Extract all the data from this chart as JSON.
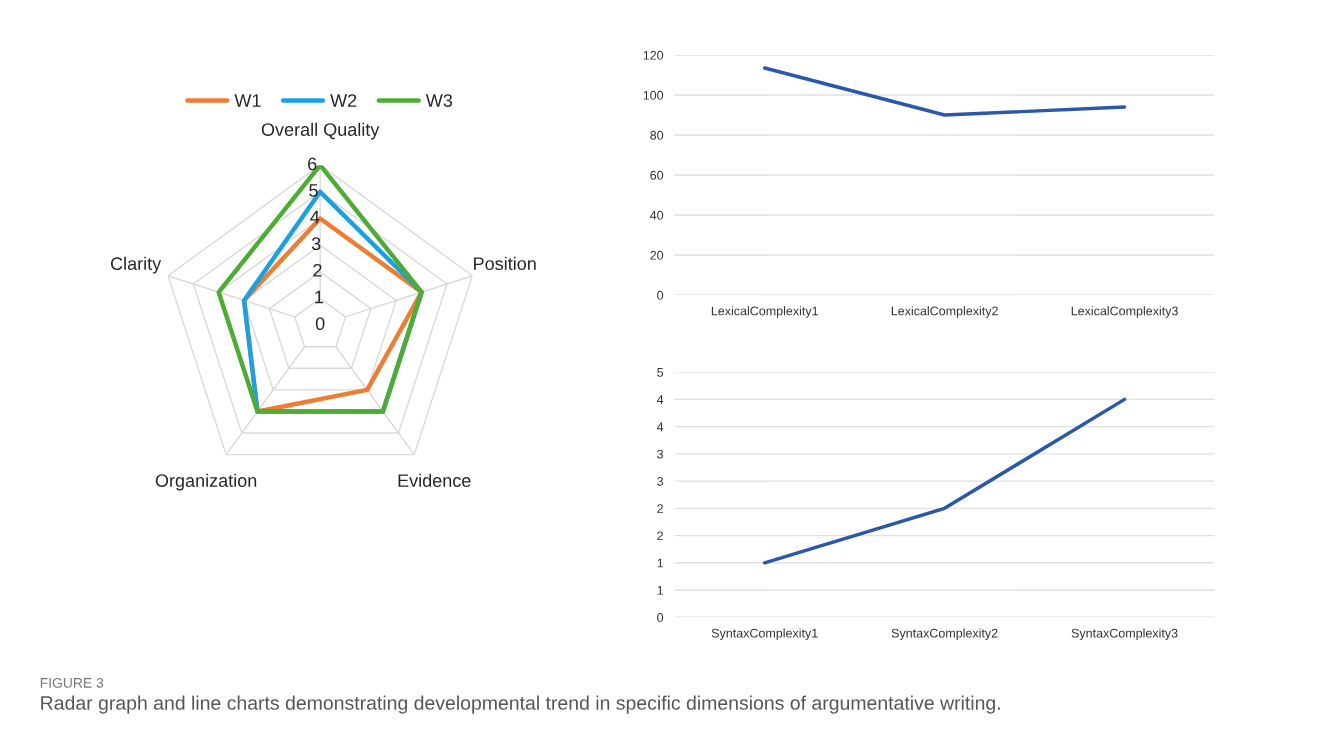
{
  "chart_data": [
    {
      "type": "radar",
      "categories": [
        "Overall Quality",
        "Position",
        "Evidence",
        "Organization",
        "Clarity"
      ],
      "ylim": [
        0,
        6
      ],
      "yticks": [
        0,
        1,
        2,
        3,
        4,
        5,
        6
      ],
      "grid": true,
      "legend": "top",
      "line_style": "solid",
      "series": [
        {
          "name": "W1",
          "color": "#ed7d31",
          "values": [
            4,
            4,
            3,
            4,
            3
          ]
        },
        {
          "name": "W2",
          "color": "#1ba1e2",
          "values": [
            5,
            4,
            4,
            4,
            3
          ]
        },
        {
          "name": "W3",
          "color": "#4eac34",
          "values": [
            6,
            4,
            4,
            4,
            4
          ]
        }
      ],
      "annotations": [
        "FIGURE 3",
        "Radar graph and line charts demonstrating developmental trend in specific dimensions of argumentative writing."
      ]
    },
    {
      "type": "line",
      "categories": [
        "LexicalComplexity1",
        "LexicalComplexity2",
        "LexicalComplexity3"
      ],
      "ylim": [
        0,
        120
      ],
      "yticks": [
        0,
        20,
        40,
        60,
        80,
        100,
        120
      ],
      "grid": "y",
      "series": [
        {
          "color": "#2b58a8",
          "values": [
            113.5,
            90,
            94
          ]
        }
      ]
    },
    {
      "type": "line",
      "categories": [
        "SyntaxComplexity1",
        "SyntaxComplexity2",
        "SyntaxComplexity3"
      ],
      "ylim": [
        0,
        4.5
      ],
      "yticks": [
        0,
        {
          "value": 0.5,
          "label": "1"
        },
        1,
        {
          "value": 1.5,
          "label": "2"
        },
        2,
        {
          "value": 2.5,
          "label": "3"
        },
        3,
        {
          "value": 3.5,
          "label": "4"
        },
        4,
        {
          "value": 4.5,
          "label": "5"
        }
      ],
      "grid": "y",
      "series": [
        {
          "color": "#2b58a8",
          "values": [
            1,
            2,
            4
          ]
        }
      ]
    }
  ]
}
